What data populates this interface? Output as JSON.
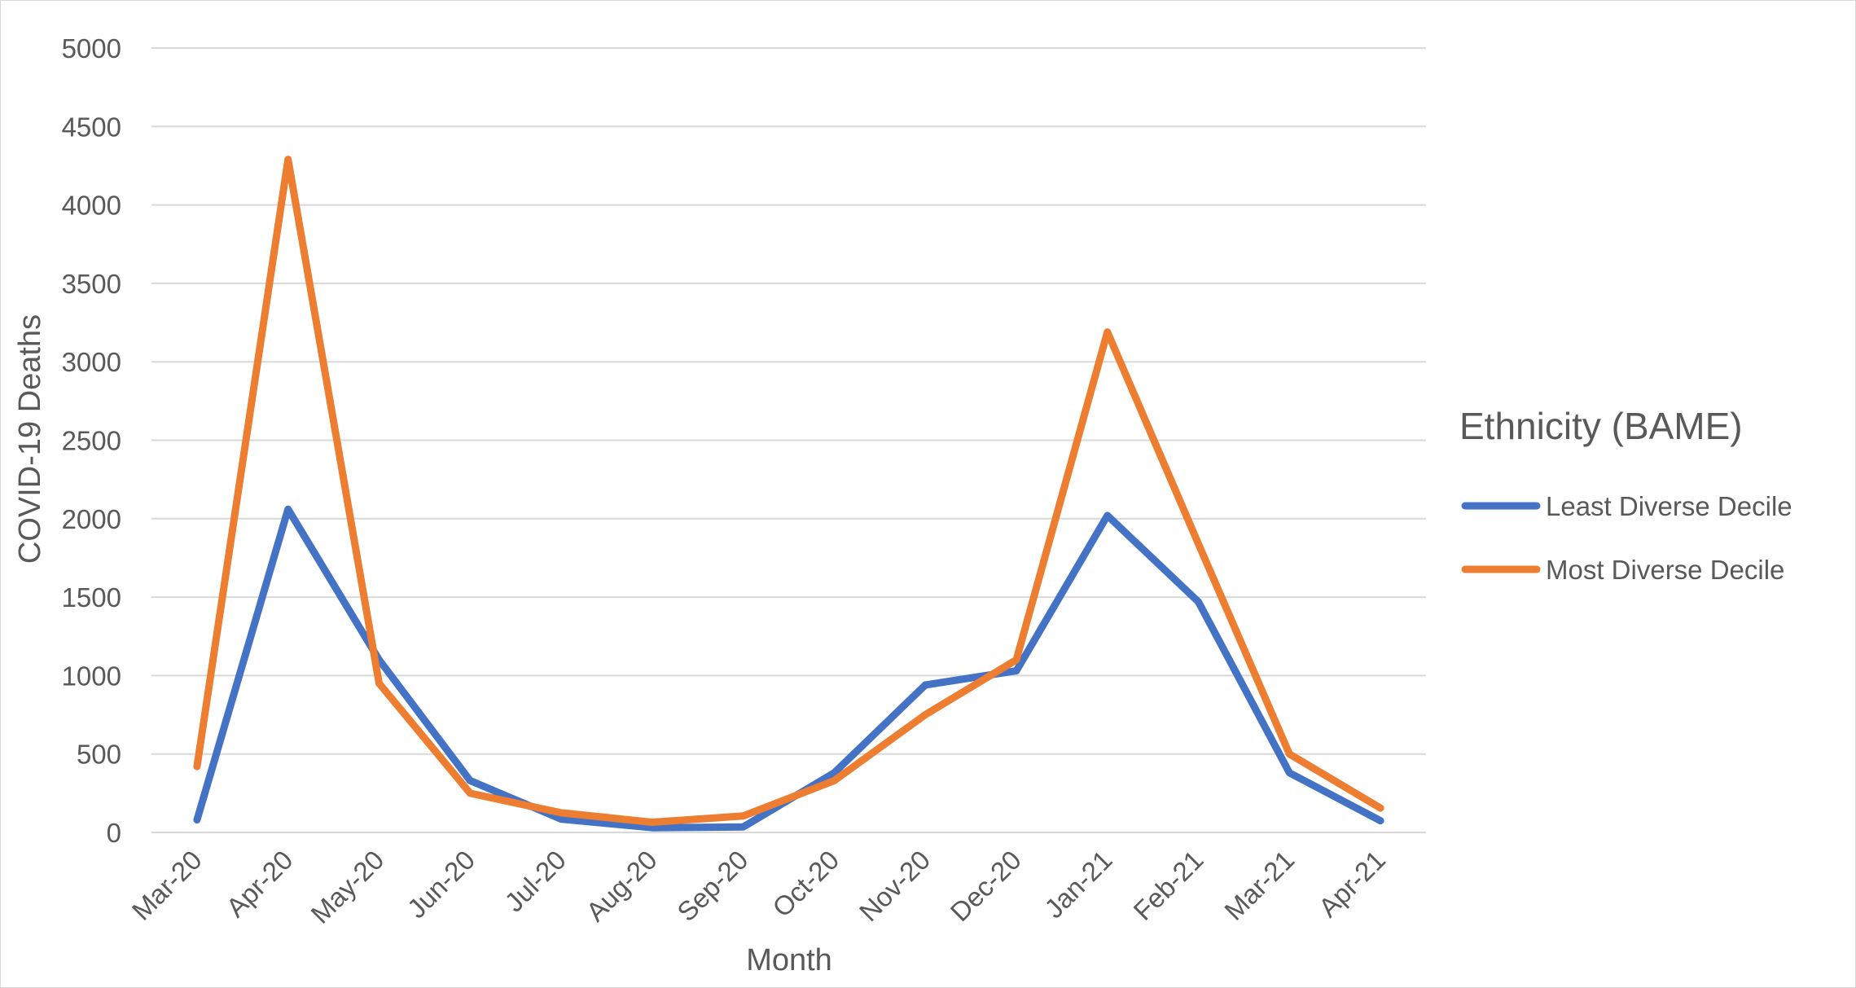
{
  "chart_data": {
    "type": "line",
    "title": "",
    "xlabel": "Month",
    "ylabel": "COVID-19 Deaths",
    "ylim": [
      0,
      5000
    ],
    "yticks": [
      0,
      500,
      1000,
      1500,
      2000,
      2500,
      3000,
      3500,
      4000,
      4500,
      5000
    ],
    "grid": true,
    "legend_placement": "right",
    "legend_title": "Ethnicity (BAME)",
    "categories": [
      "Mar-20",
      "Apr-20",
      "May-20",
      "Jun-20",
      "Jul-20",
      "Aug-20",
      "Sep-20",
      "Oct-20",
      "Nov-20",
      "Dec-20",
      "Jan-21",
      "Feb-21",
      "Mar-21",
      "Apr-21"
    ],
    "series": [
      {
        "name": "Least Diverse Decile",
        "color": "#4472c4",
        "values": [
          80,
          2060,
          1100,
          330,
          85,
          30,
          35,
          380,
          940,
          1030,
          2020,
          1470,
          380,
          75
        ]
      },
      {
        "name": "Most Diverse Decile",
        "color": "#ed7d31",
        "values": [
          420,
          4290,
          950,
          250,
          125,
          65,
          105,
          330,
          750,
          1100,
          3190,
          1840,
          500,
          155
        ]
      }
    ]
  }
}
